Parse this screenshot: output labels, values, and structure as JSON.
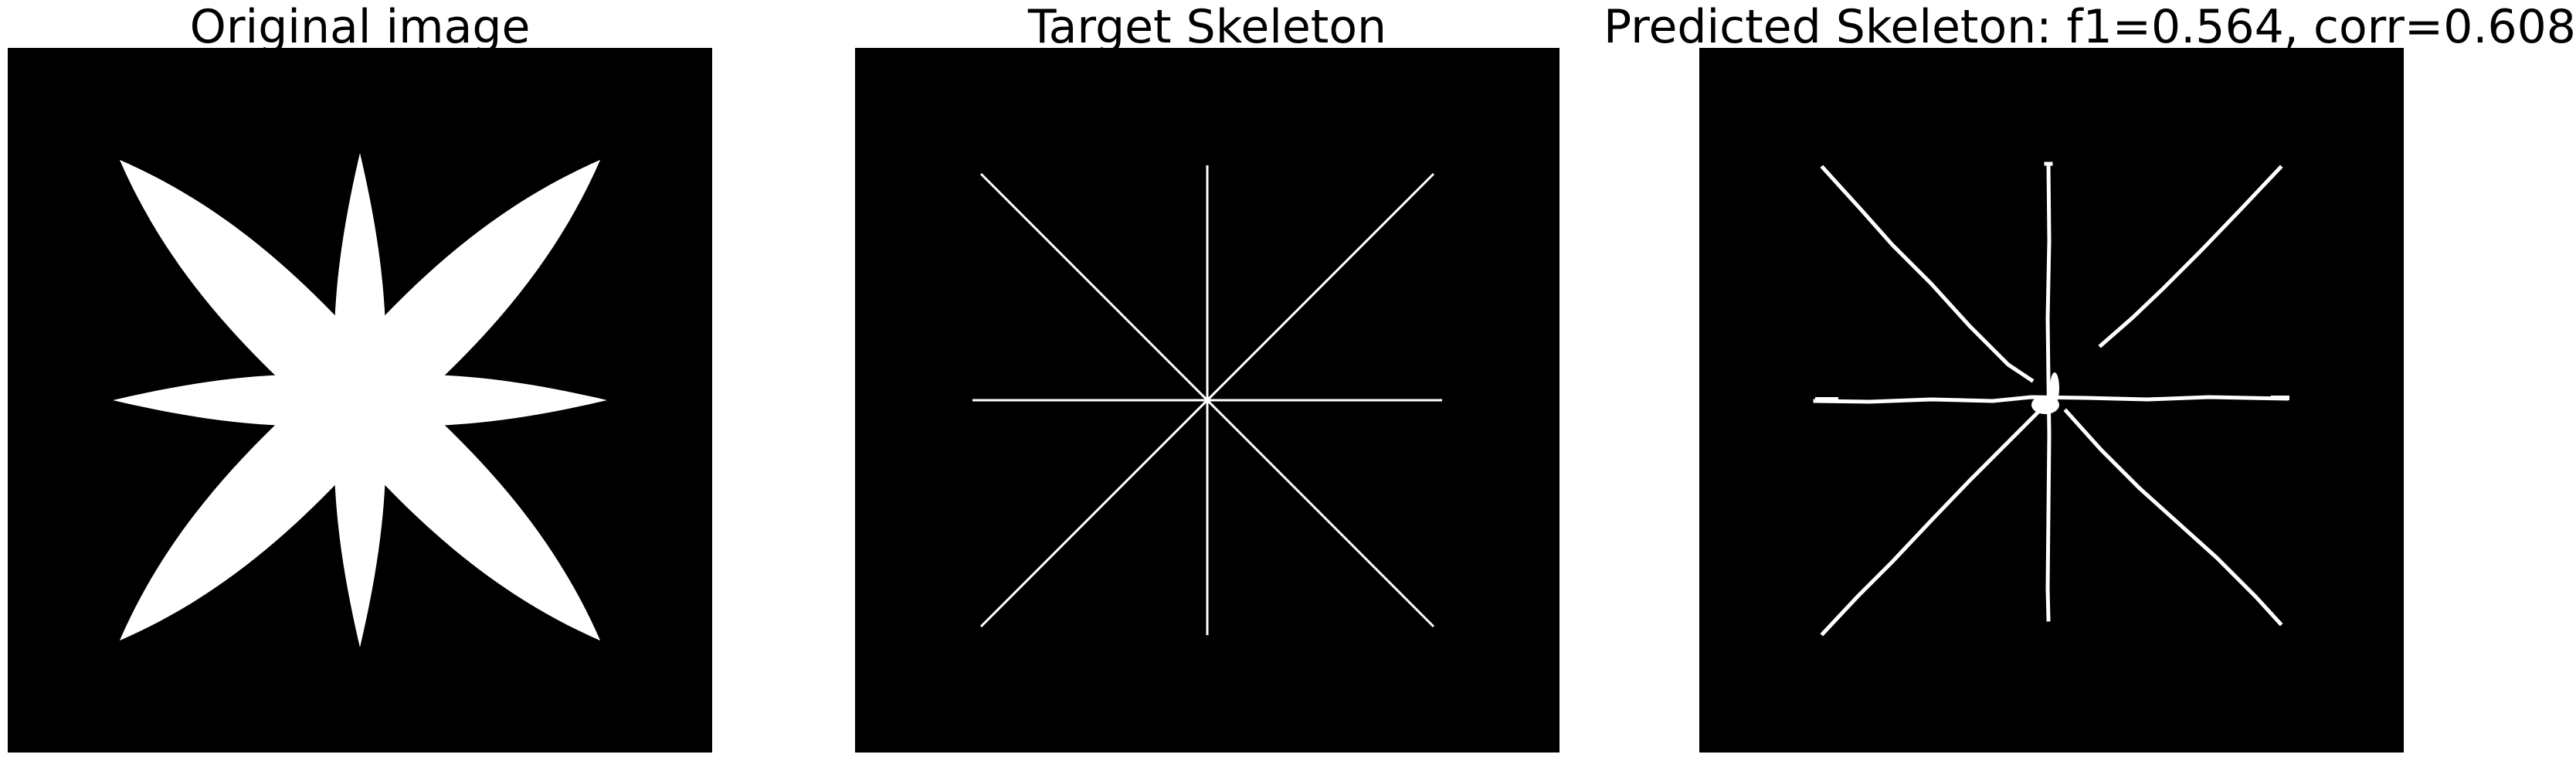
{
  "panels": [
    {
      "title": "Original image"
    },
    {
      "title": "Target Skeleton"
    },
    {
      "title": "Predicted Skeleton: f1=0.564, corr=0.608"
    }
  ],
  "colors": {
    "figure_background": "#ffffff",
    "image_background": "#000000",
    "foreground": "#ffffff"
  }
}
